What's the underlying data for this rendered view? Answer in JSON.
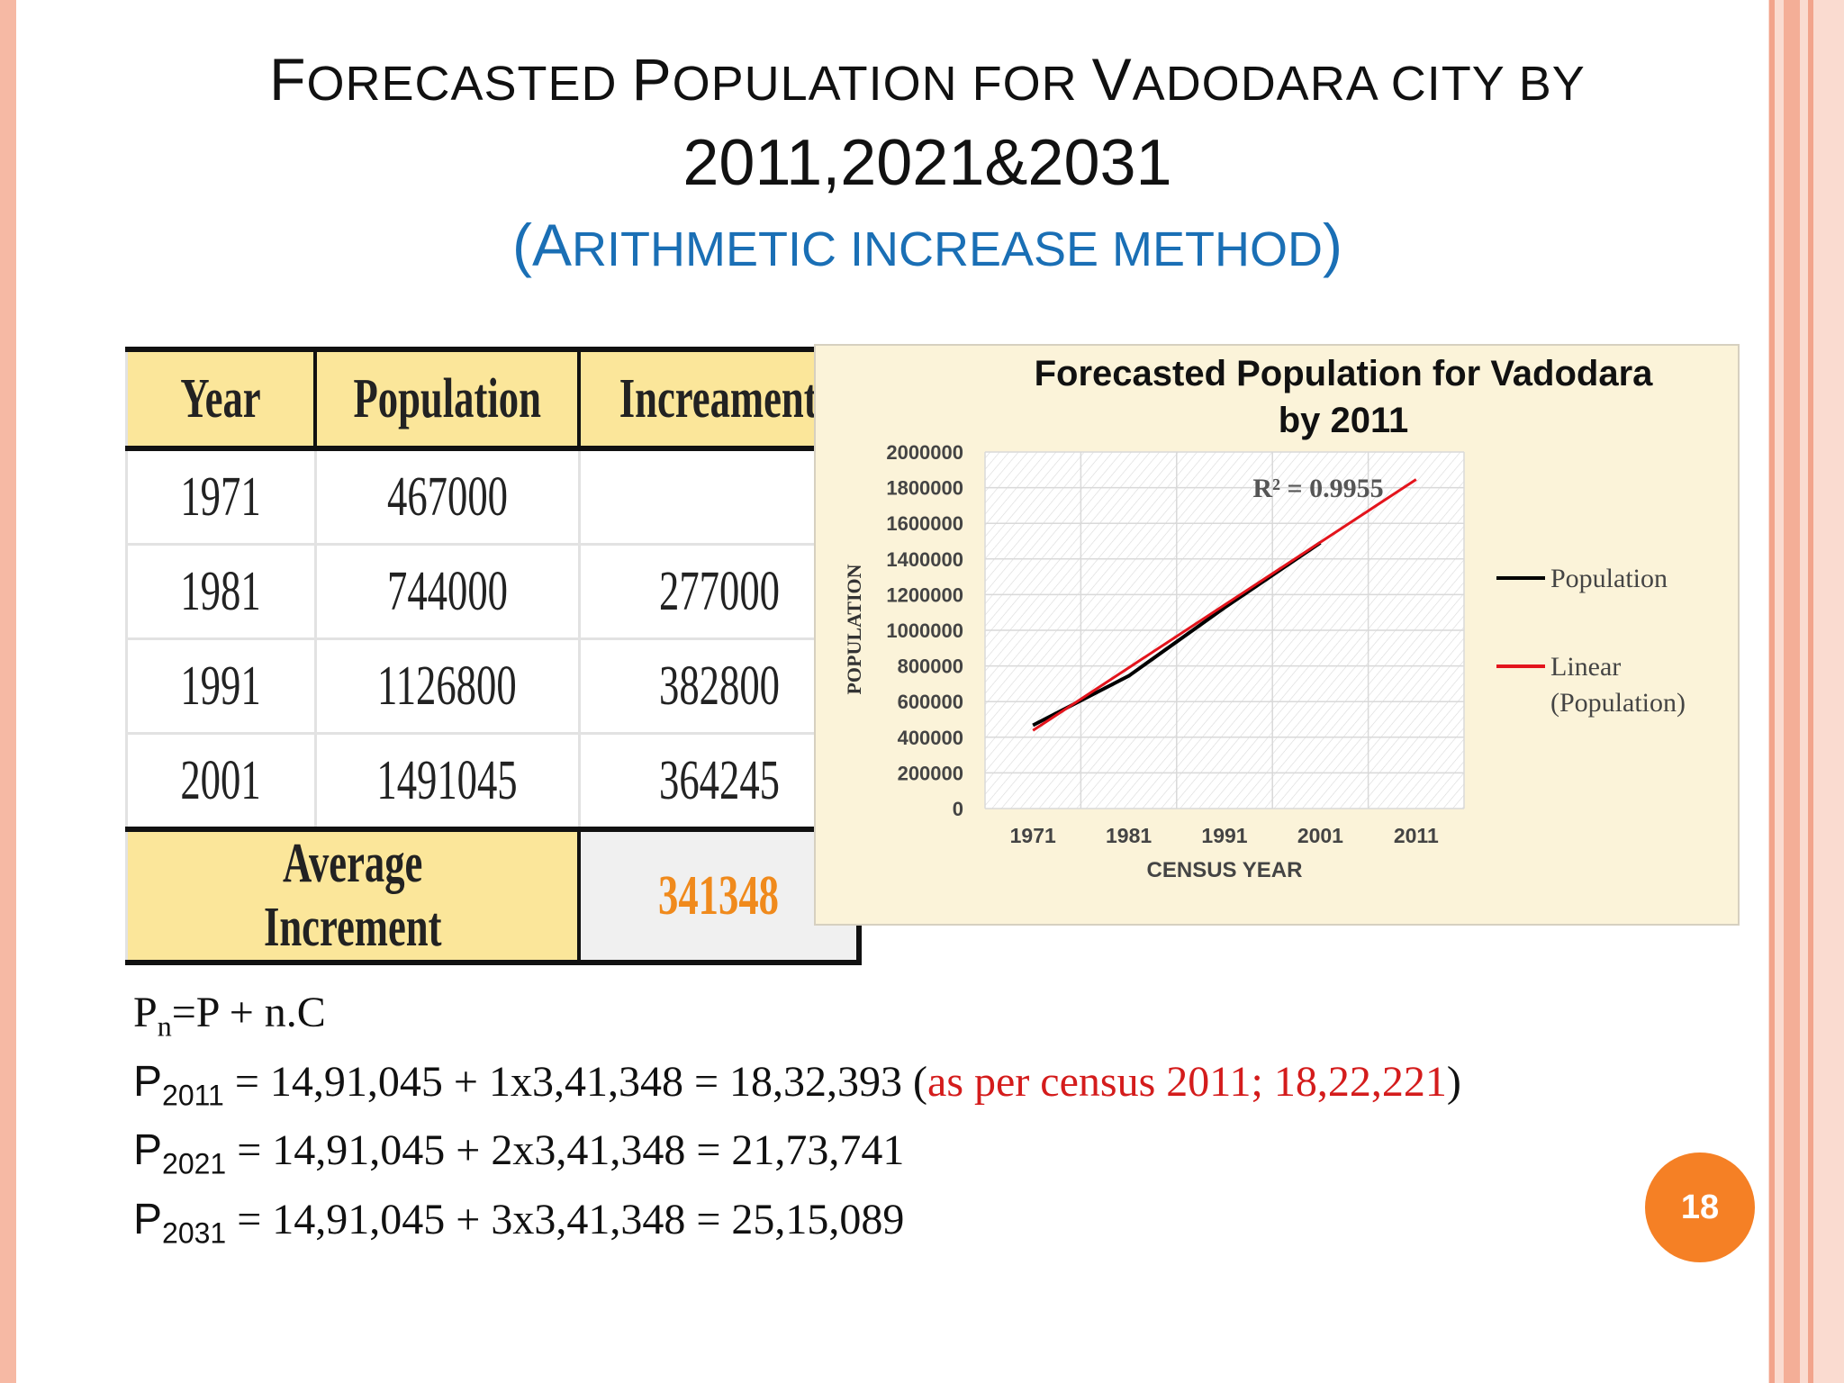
{
  "slide": {
    "title_line1_parts": [
      "F",
      "ORECASTED ",
      "P",
      "OPULATION FOR ",
      "V",
      "ADODARA CITY BY"
    ],
    "title_line2": "2011,2021&2031",
    "title_line3_parts": [
      "(A",
      "RITHMETIC INCREASE METHOD",
      ")"
    ],
    "page_number": "18"
  },
  "table": {
    "headers": [
      "Year",
      "Population",
      "Increament"
    ],
    "rows": [
      {
        "year": "1971",
        "population": "467000",
        "increment": ""
      },
      {
        "year": "1981",
        "population": "744000",
        "increment": "277000"
      },
      {
        "year": "1991",
        "population": "1126800",
        "increment": "382800"
      },
      {
        "year": "2001",
        "population": "1491045",
        "increment": "364245"
      }
    ],
    "average_label": "Average Increment",
    "average_value": "341348"
  },
  "chart_data": {
    "type": "line",
    "title": "Forecasted Population for Vadodara by 2011",
    "title_lines": [
      "Forecasted Population for Vadodara",
      "by 2011"
    ],
    "xlabel": "CENSUS YEAR",
    "ylabel": "POPULATION",
    "categories": [
      "1971",
      "1981",
      "1991",
      "2001",
      "2011"
    ],
    "ylim": [
      0,
      2000000
    ],
    "yticks": [
      "2000000",
      "1800000",
      "1600000",
      "1400000",
      "1200000",
      "1000000",
      "800000",
      "600000",
      "400000",
      "200000",
      "0"
    ],
    "series": [
      {
        "name": "Population",
        "color": "#000000",
        "values": [
          467000,
          744000,
          1126800,
          1491045,
          null
        ]
      },
      {
        "name": "Linear (Population)",
        "color": "#e3141c",
        "values": [
          438000,
          790000,
          1142000,
          1494000,
          1846000
        ]
      }
    ],
    "legend": [
      {
        "label_lines": [
          "Population"
        ],
        "color": "#000000"
      },
      {
        "label_lines": [
          "Linear",
          "(Population)"
        ],
        "color": "#e3141c"
      }
    ],
    "legend_position": "right",
    "annotation": "R² = 0.9955",
    "grid": true
  },
  "formulas": {
    "f0": {
      "lead": "P",
      "sub": "n",
      "rest": "=P + n.C"
    },
    "f1": {
      "lead": "P",
      "sub": "2011",
      "rest": " = 14,91,045 + 1x3,41,348 = 18,32,393 (",
      "red": "as per census  2011; 18,22,221",
      "tail": ")"
    },
    "f2": {
      "lead": "P",
      "sub": "2021",
      "rest": " = 14,91,045 + 2x3,41,348 = 21,73,741"
    },
    "f3": {
      "lead": "P",
      "sub": "2031",
      "rest": " = 14,91,045 + 3x3,41,348 = 25,15,089"
    }
  }
}
